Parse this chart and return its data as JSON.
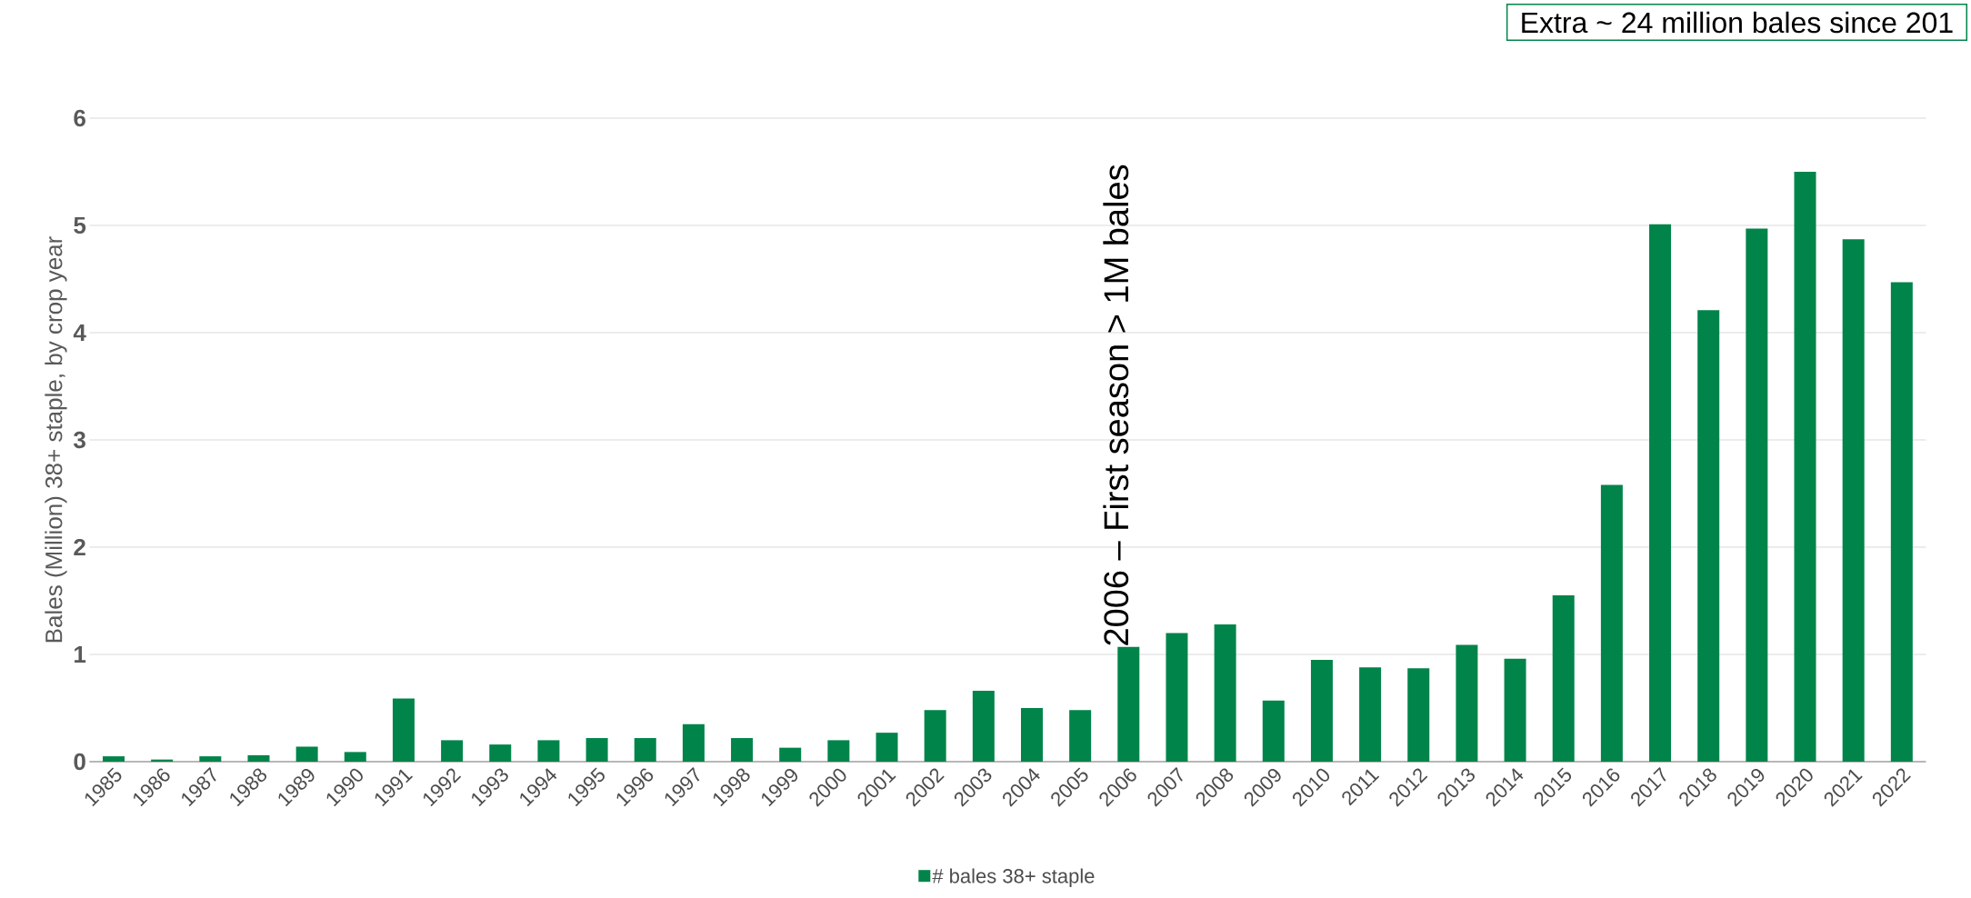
{
  "chart_data": {
    "type": "bar",
    "ylabel": "Bales (Million) 38+ staple, by crop year",
    "categories": [
      "1985",
      "1986",
      "1987",
      "1988",
      "1989",
      "1990",
      "1991",
      "1992",
      "1993",
      "1994",
      "1995",
      "1996",
      "1997",
      "1998",
      "1999",
      "2000",
      "2001",
      "2002",
      "2003",
      "2004",
      "2005",
      "2006",
      "2007",
      "2008",
      "2009",
      "2010",
      "2011",
      "2012",
      "2013",
      "2014",
      "2015",
      "2016",
      "2017",
      "2018",
      "2019",
      "2020",
      "2021",
      "2022"
    ],
    "series": [
      {
        "name": "# bales 38+ staple",
        "color": "#00844a",
        "values": [
          0.05,
          0.02,
          0.05,
          0.06,
          0.14,
          0.09,
          0.59,
          0.2,
          0.16,
          0.2,
          0.22,
          0.22,
          0.35,
          0.22,
          0.13,
          0.2,
          0.27,
          0.48,
          0.66,
          0.5,
          0.48,
          1.07,
          1.2,
          1.28,
          0.57,
          0.95,
          0.88,
          0.87,
          1.09,
          0.96,
          1.55,
          2.58,
          5.01,
          4.21,
          4.97,
          5.5,
          4.87,
          4.47
        ]
      }
    ],
    "ylim": [
      0,
      6
    ],
    "yticks": [
      0,
      1,
      2,
      3,
      4,
      5,
      6
    ],
    "grid": "y",
    "legend": "bottom",
    "annotations": [
      {
        "text": "2006 – First season > 1M bales",
        "x": "2006",
        "y": 1.07
      },
      "Extra ~ 24 million bales since 201"
    ]
  }
}
